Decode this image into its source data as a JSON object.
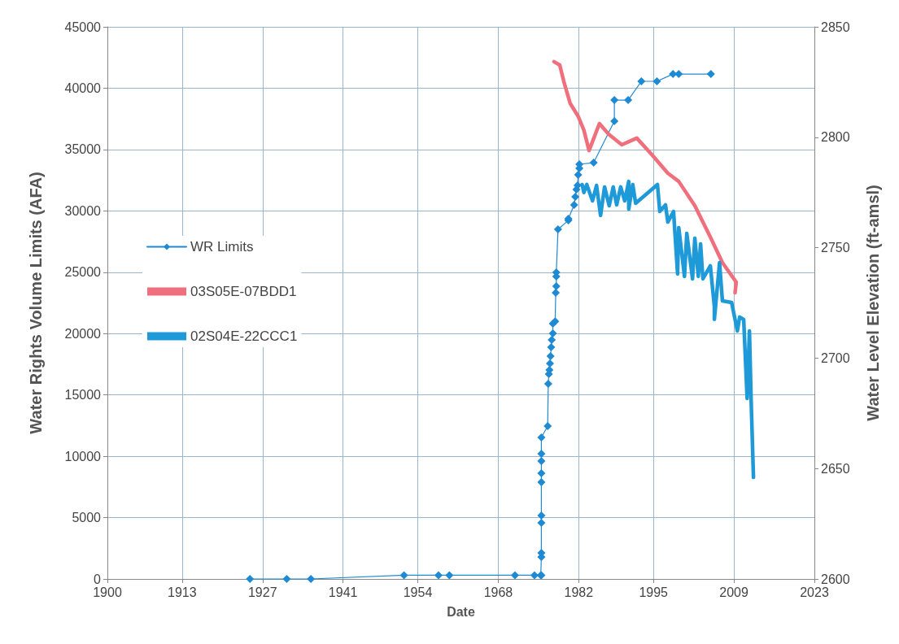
{
  "chart_data": {
    "type": "line",
    "xlabel": "Date",
    "ylabel": "Water Rights Volume Limits (AFA)",
    "y2label": "Water Level Elevation (ft-amsl)",
    "xlim": [
      1900,
      2023
    ],
    "xticks": [
      1900,
      1913,
      1927,
      1941,
      1954,
      1968,
      1982,
      1995,
      2009,
      2023
    ],
    "ylim": [
      0,
      45000
    ],
    "yticks": [
      0,
      5000,
      10000,
      15000,
      20000,
      25000,
      30000,
      35000,
      40000,
      45000
    ],
    "y2lim": [
      2600,
      2850
    ],
    "y2ticks": [
      2600,
      2650,
      2700,
      2750,
      2800,
      2850
    ],
    "grid": true,
    "legend": "left",
    "series": [
      {
        "name": "WR Limits",
        "marker": "diamond",
        "color": "#1f8ad4",
        "x": [
          1924.8,
          1931.2,
          1935.4,
          1951.6,
          1957.6,
          1959.5,
          1970.9,
          1974.3,
          1975.4,
          1975.5,
          1975.5,
          1975.5,
          1975.5,
          1975.5,
          1975.5,
          1975.5,
          1975.5,
          1975.5,
          1975.5,
          1976.6,
          1976.7,
          1976.8,
          1976.9,
          1977.0,
          1977.1,
          1977.2,
          1977.3,
          1977.5,
          1977.5,
          1977.9,
          1978.0,
          1978.1,
          1978.1,
          1978.1,
          1978.4,
          1980.2,
          1980.2,
          1981.2,
          1981.4,
          1981.6,
          1981.8,
          1981.9,
          1982.1,
          1982.1,
          1984.6,
          1988.2,
          1988.2,
          1990.6,
          1992.9,
          1995.6,
          1998.4,
          1999.4,
          2005.0
        ],
        "values": [
          0,
          0,
          0,
          300,
          300,
          300,
          300,
          300,
          300,
          300,
          1790,
          2120,
          4570,
          5170,
          7890,
          8620,
          9610,
          10200,
          11530,
          12460,
          15900,
          16700,
          17030,
          17560,
          18160,
          18890,
          19480,
          20010,
          20810,
          21000,
          23330,
          23860,
          24650,
          24980,
          28500,
          29220,
          29360,
          30480,
          31150,
          31740,
          32070,
          32940,
          33470,
          33800,
          33930,
          37310,
          39030,
          39030,
          40560,
          40560,
          41150,
          41150,
          41150
        ]
      },
      {
        "name": "03S05E-07BDD1",
        "axis": "y2",
        "marker": "none",
        "color": "#ef6f7c",
        "x": [
          1977.7,
          1978.7,
          1979.4,
          1980.5,
          1981.9,
          1982.9,
          1983.8,
          1985.6,
          1987.2,
          1989.5,
          1992.1,
          1994.7,
          1997.5,
          1999.4,
          2002.2,
          2005.0,
          2007.0,
          2009.4,
          2009.2
        ],
        "values": [
          2834.2,
          2832.7,
          2825.3,
          2815.4,
          2809.5,
          2803.2,
          2794.0,
          2806.2,
          2801.4,
          2796.6,
          2799.6,
          2792.2,
          2783.7,
          2780.0,
          2769.0,
          2754.3,
          2743.2,
          2734.4,
          2729.6
        ]
      },
      {
        "name": "02S04E-22CCC1",
        "axis": "y2",
        "marker": "none",
        "color": "#1e9ad8",
        "x": [
          1982.6,
          1982.9,
          1983.4,
          1984.4,
          1985.1,
          1985.8,
          1986.5,
          1987.3,
          1988.0,
          1988.6,
          1989.3,
          1990.0,
          1990.7,
          1990.7,
          1991.4,
          1991.9,
          1995.7,
          1996.1,
          1997.1,
          1997.5,
          1998.5,
          1999.2,
          1999.4,
          2000.4,
          2000.8,
          2001.8,
          2002.2,
          2002.8,
          2003.2,
          2003.6,
          2004.9,
          2005.6,
          2005.6,
          2006.5,
          2007.0,
          2008.6,
          2009.6,
          2010.0,
          2010.7,
          2011.3,
          2011.7,
          2012.0,
          2012.4
        ],
        "values": [
          2778.6,
          2775.0,
          2778.6,
          2771.2,
          2778.2,
          2764.6,
          2777.5,
          2769.0,
          2777.5,
          2769.4,
          2777.5,
          2771.2,
          2780.0,
          2767.5,
          2778.6,
          2770.1,
          2778.6,
          2766.4,
          2769.4,
          2761.6,
          2766.4,
          2738.1,
          2759.1,
          2737.0,
          2756.5,
          2735.9,
          2754.3,
          2737.0,
          2751.7,
          2735.9,
          2741.8,
          2723.3,
          2717.5,
          2743.2,
          2725.9,
          2725.2,
          2712.3,
          2718.6,
          2717.5,
          2681.7,
          2712.3,
          2680.6,
          2646.0
        ]
      }
    ]
  }
}
